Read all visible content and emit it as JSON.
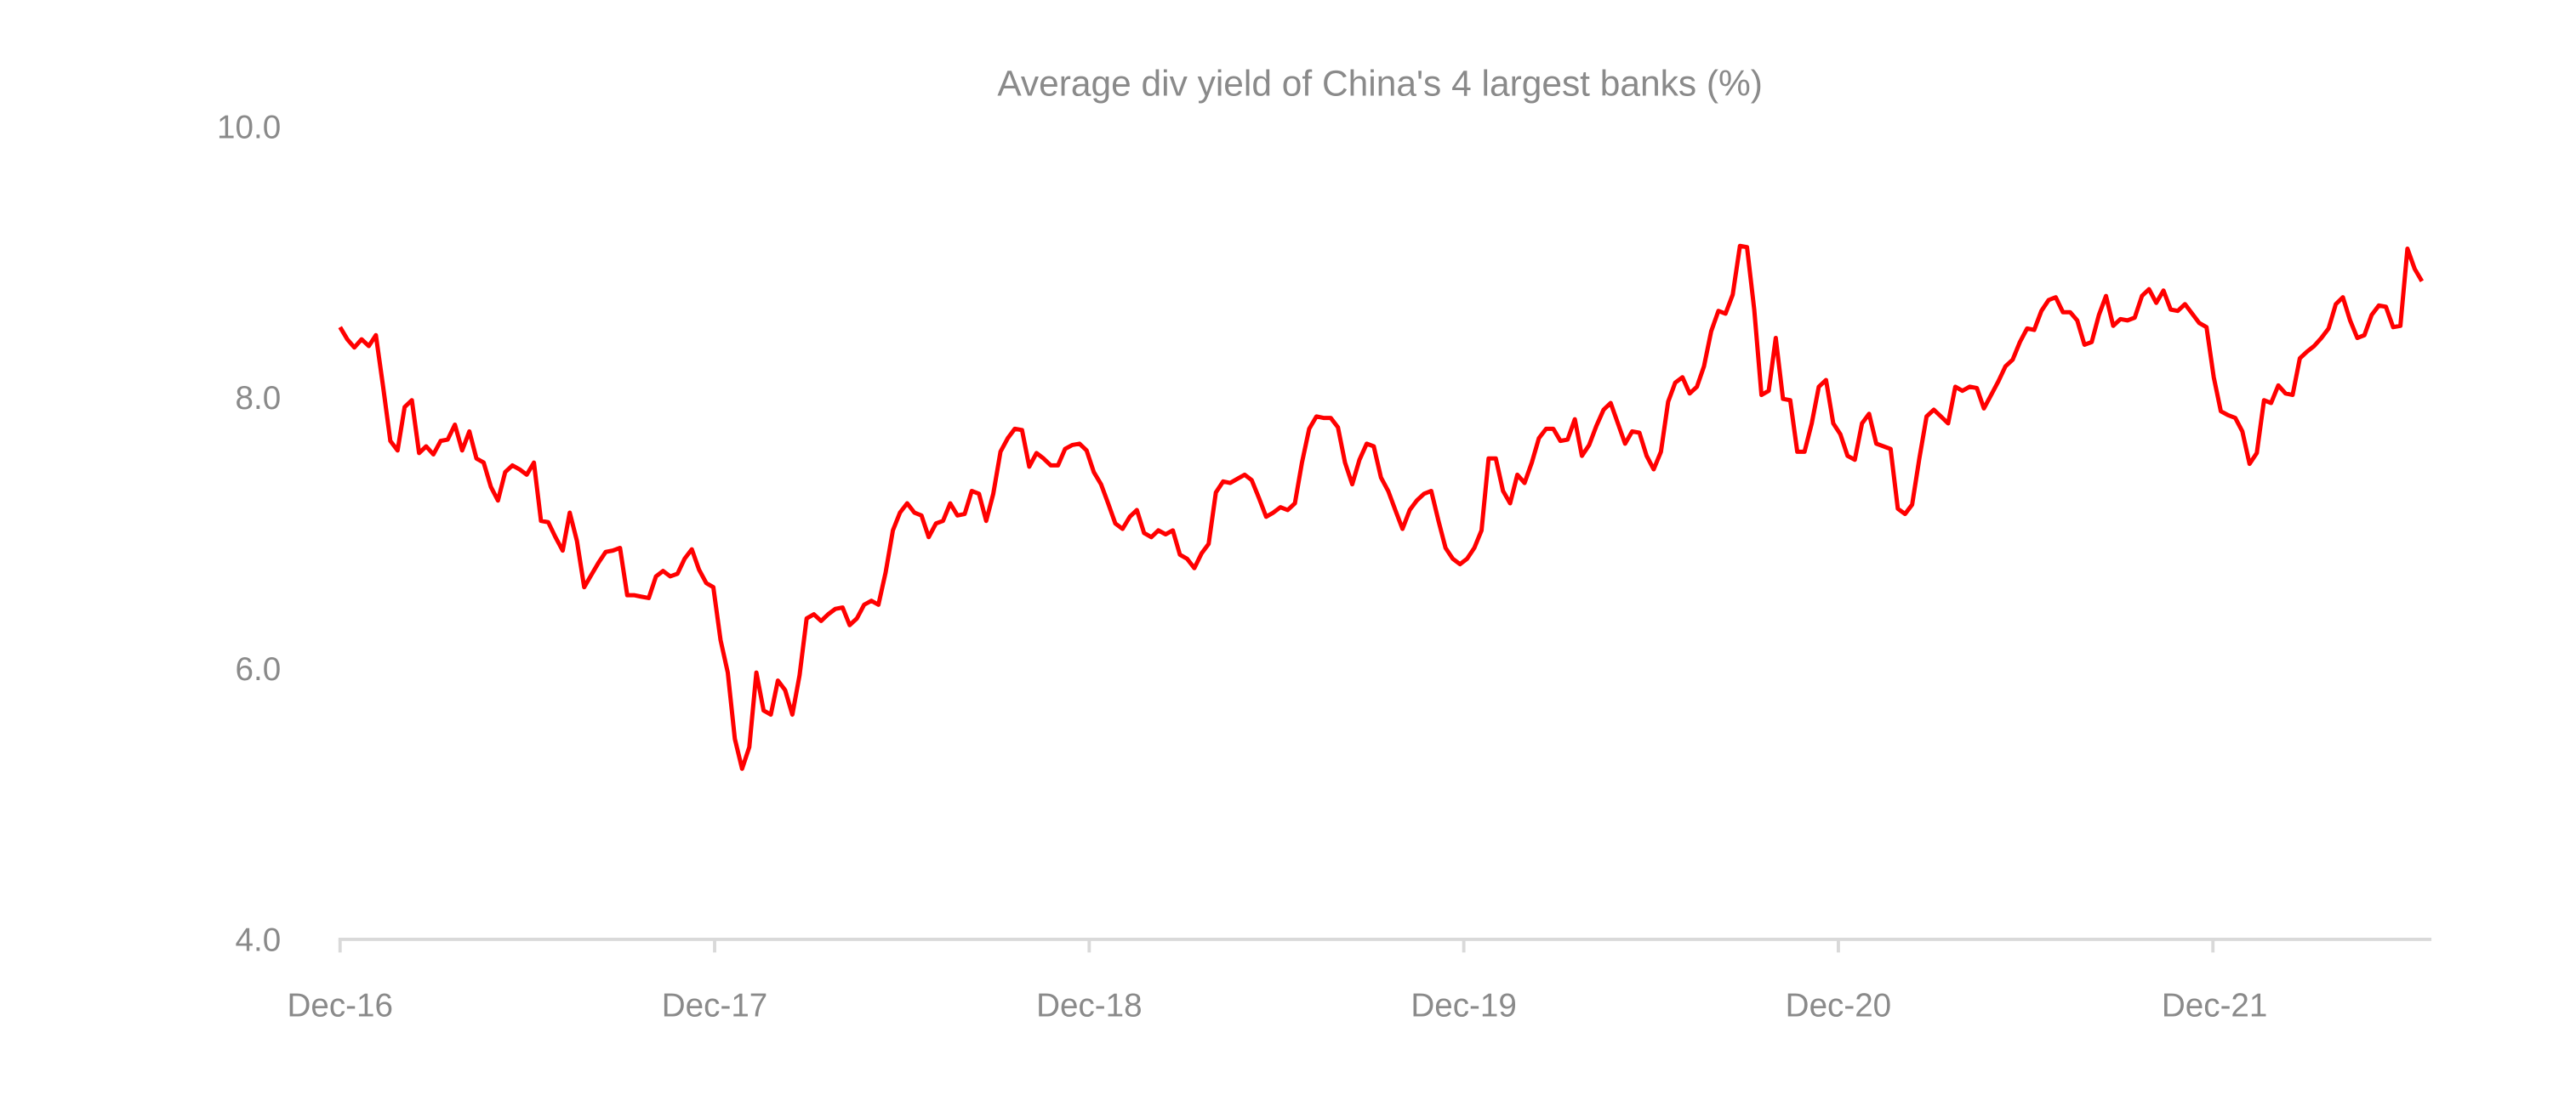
{
  "chart_data": {
    "type": "line",
    "title": "Average div yield of China's 4 largest banks (%)",
    "xlabel": "",
    "ylabel": "",
    "ylim": [
      4.0,
      10.0
    ],
    "y_ticks": [
      "4.0",
      "6.0",
      "8.0",
      "10.0"
    ],
    "x_ticks": [
      "Dec-16",
      "Dec-17",
      "Dec-18",
      "Dec-19",
      "Dec-20",
      "Dec-21"
    ],
    "grid": false,
    "legend": "none",
    "colors": {
      "line": "#ff0000",
      "axis": "#d9d9d9",
      "text": "#8a8a8a"
    },
    "series": [
      {
        "x": [
          "2016-12-30",
          "2017-01-06",
          "2017-01-13",
          "2017-01-20",
          "2017-01-27",
          "2017-02-03",
          "2017-02-10",
          "2017-02-17",
          "2017-02-24",
          "2017-03-03",
          "2017-03-10",
          "2017-03-17",
          "2017-03-24",
          "2017-03-31",
          "2017-04-07",
          "2017-04-14",
          "2017-04-21",
          "2017-04-28",
          "2017-05-05",
          "2017-05-12",
          "2017-05-19",
          "2017-05-26",
          "2017-06-02",
          "2017-06-09",
          "2017-06-16",
          "2017-06-23",
          "2017-06-30",
          "2017-07-07",
          "2017-07-14",
          "2017-07-21",
          "2017-07-28",
          "2017-08-04",
          "2017-08-11",
          "2017-08-18",
          "2017-08-25",
          "2017-09-01",
          "2017-09-08",
          "2017-09-15",
          "2017-09-22",
          "2017-09-29",
          "2017-10-06",
          "2017-10-13",
          "2017-10-20",
          "2017-10-27",
          "2017-11-03",
          "2017-11-10",
          "2017-11-17",
          "2017-11-24",
          "2017-12-01",
          "2017-12-08",
          "2017-12-15",
          "2017-12-22",
          "2017-12-29",
          "2018-01-05",
          "2018-01-12",
          "2018-01-19",
          "2018-01-26",
          "2018-02-02",
          "2018-02-09",
          "2018-02-16",
          "2018-02-23",
          "2018-03-02",
          "2018-03-09",
          "2018-03-16",
          "2018-03-23",
          "2018-03-30",
          "2018-04-06",
          "2018-04-13",
          "2018-04-20",
          "2018-04-27",
          "2018-05-04",
          "2018-05-11",
          "2018-05-18",
          "2018-05-25",
          "2018-06-01",
          "2018-06-08",
          "2018-06-15",
          "2018-06-22",
          "2018-06-29",
          "2018-07-06",
          "2018-07-13",
          "2018-07-20",
          "2018-07-27",
          "2018-08-03",
          "2018-08-10",
          "2018-08-17",
          "2018-08-24",
          "2018-08-31",
          "2018-09-07",
          "2018-09-14",
          "2018-09-21",
          "2018-09-28",
          "2018-10-05",
          "2018-10-12",
          "2018-10-19",
          "2018-10-26",
          "2018-11-02",
          "2018-11-09",
          "2018-11-16",
          "2018-11-23",
          "2018-11-30",
          "2018-12-07",
          "2018-12-14",
          "2018-12-21",
          "2018-12-28",
          "2019-01-04",
          "2019-01-11",
          "2019-01-18",
          "2019-01-25",
          "2019-02-01",
          "2019-02-08",
          "2019-02-15",
          "2019-02-22",
          "2019-03-01",
          "2019-03-08",
          "2019-03-15",
          "2019-03-22",
          "2019-03-29",
          "2019-04-05",
          "2019-04-12",
          "2019-04-19",
          "2019-04-26",
          "2019-05-03",
          "2019-05-10",
          "2019-05-17",
          "2019-05-24",
          "2019-05-31",
          "2019-06-07",
          "2019-06-14",
          "2019-06-21",
          "2019-06-28",
          "2019-07-05",
          "2019-07-12",
          "2019-07-19",
          "2019-07-26",
          "2019-08-02",
          "2019-08-09",
          "2019-08-16",
          "2019-08-23",
          "2019-08-30",
          "2019-09-06",
          "2019-09-13",
          "2019-09-20",
          "2019-09-27",
          "2019-10-04",
          "2019-10-11",
          "2019-10-18",
          "2019-10-25",
          "2019-11-01",
          "2019-11-08",
          "2019-11-15",
          "2019-11-22",
          "2019-11-29",
          "2019-12-06",
          "2019-12-13",
          "2019-12-20",
          "2019-12-27",
          "2020-01-03",
          "2020-01-10",
          "2020-01-17",
          "2020-01-24",
          "2020-01-31",
          "2020-02-07",
          "2020-02-14",
          "2020-02-21",
          "2020-02-28",
          "2020-03-06",
          "2020-03-13",
          "2020-03-20",
          "2020-03-27",
          "2020-04-03",
          "2020-04-10",
          "2020-04-17",
          "2020-04-24",
          "2020-05-01",
          "2020-05-08",
          "2020-05-15",
          "2020-05-22",
          "2020-05-29",
          "2020-06-05",
          "2020-06-12",
          "2020-06-19",
          "2020-06-26",
          "2020-07-03",
          "2020-07-10",
          "2020-07-17",
          "2020-07-24",
          "2020-07-31",
          "2020-08-07",
          "2020-08-14",
          "2020-08-21",
          "2020-08-28",
          "2020-09-04",
          "2020-09-11",
          "2020-09-18",
          "2020-09-25",
          "2020-10-02",
          "2020-10-09",
          "2020-10-16",
          "2020-10-23",
          "2020-10-30",
          "2020-11-06",
          "2020-11-13",
          "2020-11-20",
          "2020-11-27",
          "2020-12-04",
          "2020-12-11",
          "2020-12-18",
          "2020-12-25",
          "2021-01-01",
          "2021-01-08",
          "2021-01-15",
          "2021-01-22",
          "2021-01-29",
          "2021-02-05",
          "2021-02-12",
          "2021-02-19",
          "2021-02-26",
          "2021-03-05",
          "2021-03-12",
          "2021-03-19",
          "2021-03-26",
          "2021-04-02",
          "2021-04-09",
          "2021-04-16",
          "2021-04-23",
          "2021-04-30",
          "2021-05-07",
          "2021-05-14",
          "2021-05-21",
          "2021-05-28",
          "2021-06-04",
          "2021-06-11",
          "2021-06-18",
          "2021-06-25",
          "2021-07-02",
          "2021-07-09",
          "2021-07-16",
          "2021-07-23",
          "2021-07-30",
          "2021-08-06",
          "2021-08-13",
          "2021-08-20",
          "2021-08-27",
          "2021-09-03",
          "2021-09-10",
          "2021-09-17",
          "2021-09-24",
          "2021-10-01",
          "2021-10-08",
          "2021-10-15",
          "2021-10-22",
          "2021-10-29",
          "2021-11-05",
          "2021-11-12",
          "2021-11-19",
          "2021-11-26",
          "2021-12-03",
          "2021-12-10",
          "2021-12-17",
          "2021-12-24",
          "2021-12-31",
          "2022-01-07",
          "2022-01-14",
          "2022-01-21",
          "2022-01-28",
          "2022-02-04",
          "2022-02-11",
          "2022-02-18",
          "2022-02-25",
          "2022-03-04",
          "2022-03-11",
          "2022-03-18",
          "2022-03-25",
          "2022-04-01",
          "2022-04-08",
          "2022-04-15",
          "2022-04-22",
          "2022-04-29",
          "2022-05-06",
          "2022-05-13",
          "2022-05-20",
          "2022-05-27",
          "2022-06-03",
          "2022-06-10",
          "2022-06-17",
          "2022-06-24",
          "2022-07-01",
          "2022-07-08",
          "2022-07-15",
          "2022-07-22"
        ],
        "y": [
          8.52,
          8.43,
          8.37,
          8.43,
          8.38,
          8.46,
          8.08,
          7.68,
          7.61,
          7.93,
          7.98,
          7.59,
          7.64,
          7.58,
          7.68,
          7.69,
          7.8,
          7.61,
          7.75,
          7.55,
          7.52,
          7.34,
          7.24,
          7.45,
          7.5,
          7.47,
          7.43,
          7.52,
          7.09,
          7.08,
          6.97,
          6.87,
          7.15,
          6.94,
          6.6,
          6.69,
          6.78,
          6.86,
          6.87,
          6.89,
          6.54,
          6.54,
          6.53,
          6.52,
          6.68,
          6.72,
          6.68,
          6.7,
          6.81,
          6.88,
          6.73,
          6.63,
          6.6,
          6.21,
          5.97,
          5.48,
          5.26,
          5.42,
          5.97,
          5.69,
          5.66,
          5.91,
          5.84,
          5.66,
          5.95,
          6.37,
          6.4,
          6.35,
          6.4,
          6.44,
          6.45,
          6.32,
          6.37,
          6.47,
          6.5,
          6.47,
          6.71,
          7.02,
          7.15,
          7.22,
          7.15,
          7.13,
          6.97,
          7.07,
          7.09,
          7.22,
          7.13,
          7.14,
          7.31,
          7.29,
          7.09,
          7.29,
          7.6,
          7.7,
          7.77,
          7.76,
          7.49,
          7.59,
          7.55,
          7.5,
          7.5,
          7.62,
          7.65,
          7.66,
          7.61,
          7.45,
          7.36,
          7.22,
          7.07,
          7.03,
          7.12,
          7.17,
          7.0,
          6.97,
          7.02,
          6.99,
          7.02,
          6.84,
          6.81,
          6.74,
          6.85,
          6.92,
          7.3,
          7.38,
          7.37,
          7.4,
          7.43,
          7.39,
          7.26,
          7.12,
          7.15,
          7.19,
          7.17,
          7.22,
          7.52,
          7.77,
          7.86,
          7.85,
          7.85,
          7.78,
          7.52,
          7.36,
          7.54,
          7.66,
          7.64,
          7.41,
          7.31,
          7.17,
          7.03,
          7.17,
          7.24,
          7.29,
          7.31,
          7.09,
          6.89,
          6.81,
          6.77,
          6.81,
          6.89,
          7.02,
          7.55,
          7.55,
          7.31,
          7.22,
          7.43,
          7.37,
          7.52,
          7.7,
          7.77,
          7.77,
          7.68,
          7.69,
          7.84,
          7.57,
          7.65,
          7.79,
          7.91,
          7.96,
          7.81,
          7.66,
          7.75,
          7.74,
          7.57,
          7.47,
          7.6,
          7.97,
          8.11,
          8.15,
          8.03,
          8.08,
          8.23,
          8.49,
          8.64,
          8.62,
          8.76,
          9.12,
          9.11,
          8.65,
          8.02,
          8.05,
          8.44,
          7.99,
          7.98,
          7.6,
          7.6,
          7.81,
          8.08,
          8.13,
          7.81,
          7.73,
          7.57,
          7.54,
          7.81,
          7.88,
          7.66,
          7.64,
          7.62,
          7.18,
          7.14,
          7.21,
          7.55,
          7.86,
          7.91,
          7.86,
          7.81,
          8.08,
          8.05,
          8.08,
          8.07,
          7.92,
          8.02,
          8.12,
          8.23,
          8.28,
          8.41,
          8.51,
          8.5,
          8.64,
          8.72,
          8.74,
          8.63,
          8.63,
          8.57,
          8.39,
          8.41,
          8.61,
          8.75,
          8.53,
          8.58,
          8.57,
          8.59,
          8.75,
          8.8,
          8.7,
          8.79,
          8.65,
          8.64,
          8.69,
          8.62,
          8.55,
          8.52,
          8.15,
          7.9,
          7.87,
          7.85,
          7.75,
          7.51,
          7.59,
          7.98,
          7.96,
          8.09,
          8.03,
          8.02,
          8.29,
          8.34,
          8.38,
          8.44,
          8.51,
          8.69,
          8.74,
          8.57,
          8.44,
          8.46,
          8.61,
          8.68,
          8.67,
          8.52,
          8.53,
          9.1,
          8.95,
          8.86
        ]
      }
    ]
  }
}
